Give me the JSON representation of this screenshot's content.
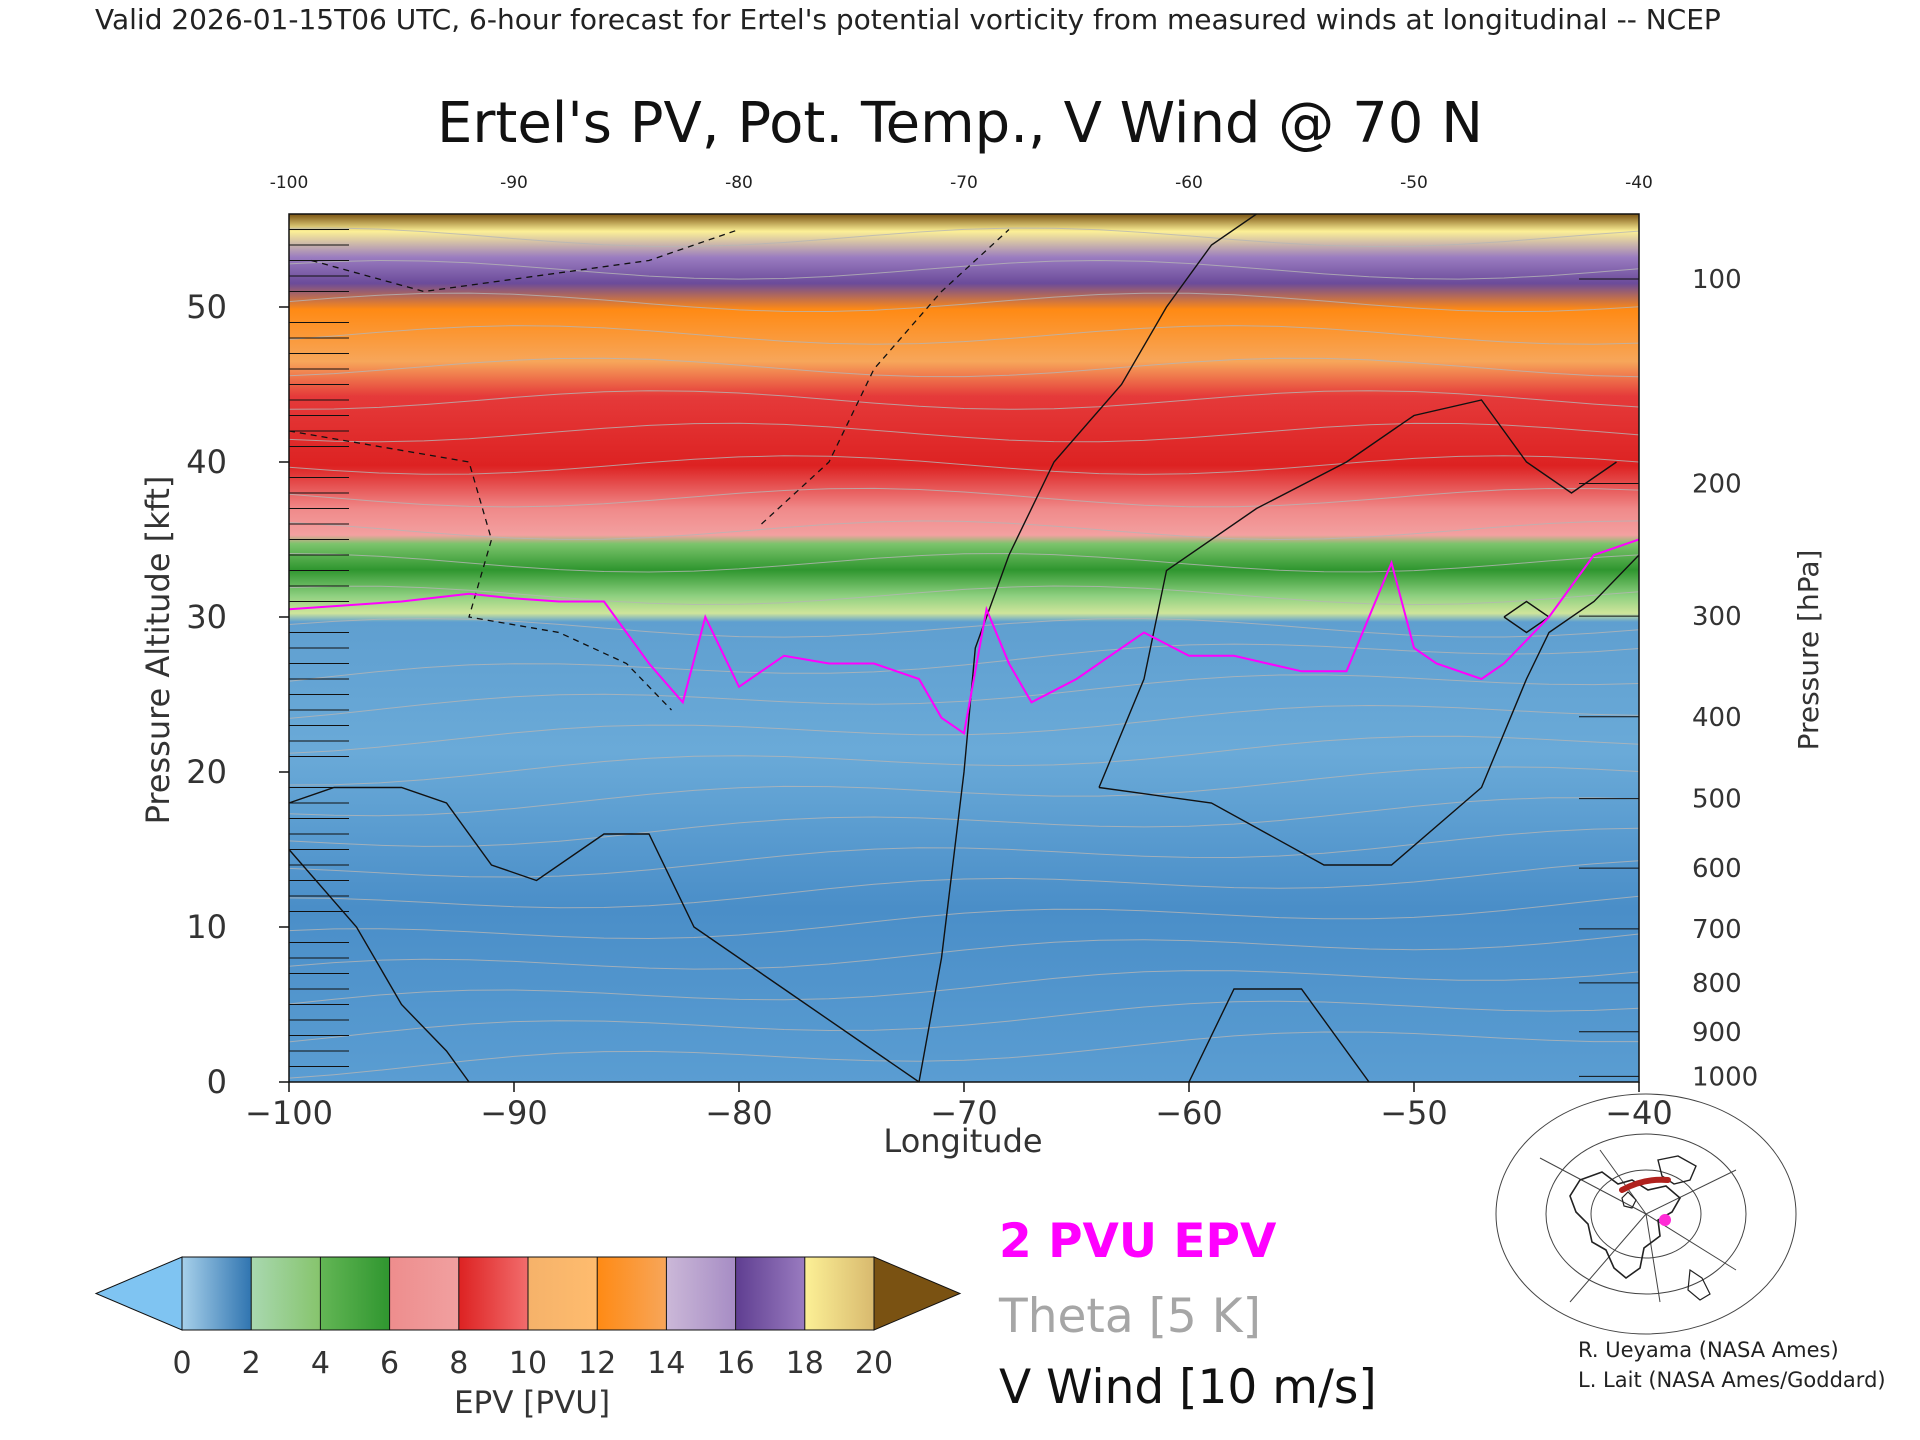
{
  "header": {
    "valid_line": "Valid 2026-01-15T06 UTC, 6-hour forecast for Ertel's potential vorticity from measured winds at longitudinal -- NCEP",
    "title": "Ertel's PV, Pot. Temp., V Wind @ 70 N"
  },
  "chart_data": {
    "type": "heatmap",
    "title": "Ertel's PV, Pot. Temp., V Wind @ 70 N",
    "xlabel": "Longitude",
    "ylabel": "Pressure Altitude [kft]",
    "y2label": "Pressure [hPa]",
    "xlim": [
      -100,
      -40
    ],
    "ylim": [
      0,
      56
    ],
    "x_ticks": [
      -100,
      -90,
      -80,
      -70,
      -60,
      -50,
      -40
    ],
    "x_tick_labels": [
      "−100",
      "−90",
      "−80",
      "−70",
      "−60",
      "−50",
      "−40"
    ],
    "top_x_tick_labels": [
      "-100",
      "-90",
      "-80",
      "-70",
      "-60",
      "-50",
      "-40"
    ],
    "y_ticks": [
      0,
      10,
      20,
      30,
      40,
      50
    ],
    "pressure_ticks": [
      {
        "hpa": 100,
        "label": "100"
      },
      {
        "hpa": 200,
        "label": "200"
      },
      {
        "hpa": 300,
        "label": "300"
      },
      {
        "hpa": 400,
        "label": "400"
      },
      {
        "hpa": 500,
        "label": "500"
      },
      {
        "hpa": 600,
        "label": "600"
      },
      {
        "hpa": 700,
        "label": "700"
      },
      {
        "hpa": 800,
        "label": "800"
      },
      {
        "hpa": 900,
        "label": "900"
      },
      {
        "hpa": 1000,
        "label": "1000"
      }
    ],
    "tropopause_2pvu_kft": {
      "x": [
        -100,
        -95,
        -92,
        -90,
        -88,
        -86,
        -84,
        -82.5,
        -81.5,
        -80,
        -78,
        -76,
        -74,
        -72,
        -71,
        -70,
        -69,
        -68,
        -67,
        -65,
        -62,
        -60,
        -58,
        -55,
        -53,
        -51,
        -50,
        -49,
        -47,
        -46,
        -44,
        -42,
        -40
      ],
      "y": [
        30.5,
        31,
        31.5,
        31.2,
        31,
        31,
        27,
        24.5,
        30,
        25.5,
        27.5,
        27,
        27,
        26,
        23.5,
        22.5,
        30.5,
        27,
        24.5,
        26,
        29,
        27.5,
        27.5,
        26.5,
        26.5,
        33.5,
        28,
        27,
        26,
        27,
        30,
        34,
        35
      ]
    },
    "colorbar": {
      "label": "EPV [PVU]",
      "ticks": [
        "0",
        "2",
        "4",
        "6",
        "8",
        "10",
        "12",
        "14",
        "16",
        "18",
        "20"
      ],
      "bins": [
        {
          "from": 0,
          "to": 2,
          "colors": [
            "#a7d0ea",
            "#2f74b0"
          ]
        },
        {
          "from": 2,
          "to": 4,
          "colors": [
            "#a9d8b0",
            "#86c46c"
          ]
        },
        {
          "from": 4,
          "to": 6,
          "colors": [
            "#63b655",
            "#2f962f"
          ]
        },
        {
          "from": 6,
          "to": 8,
          "colors": [
            "#ee8d8d",
            "#f0a0a0"
          ]
        },
        {
          "from": 8,
          "to": 10,
          "colors": [
            "#dd2222",
            "#f26d6d"
          ]
        },
        {
          "from": 10,
          "to": 12,
          "colors": [
            "#f5b26a",
            "#ffbc6e"
          ]
        },
        {
          "from": 12,
          "to": 14,
          "colors": [
            "#ff8a14",
            "#f7a65a"
          ]
        },
        {
          "from": 14,
          "to": 16,
          "colors": [
            "#cbb8d8",
            "#a68cc4"
          ]
        },
        {
          "from": 16,
          "to": 18,
          "colors": [
            "#5f3e91",
            "#9a7cc0"
          ]
        },
        {
          "from": 18,
          "to": 20,
          "colors": [
            "#fcf096",
            "#d8b96e"
          ]
        }
      ],
      "under_color": "#7fc4f2",
      "over_color": "#7a5212"
    }
  },
  "legend": {
    "epv_contour": "2 PVU EPV",
    "theta": "Theta [5 K]",
    "vwind": "V Wind [10 m/s]",
    "colors": {
      "epv": "#ff00ff",
      "theta": "#a6a6a6",
      "vwind": "#111111"
    }
  },
  "credits": {
    "line1": "R. Ueyama (NASA Ames)",
    "line2": "L. Lait (NASA Ames/Goddard)"
  },
  "locator_map": {
    "icon": "polar-stereographic-north-america-map",
    "marker_color": "#ff2bd6",
    "section_color": "#b0211d"
  }
}
